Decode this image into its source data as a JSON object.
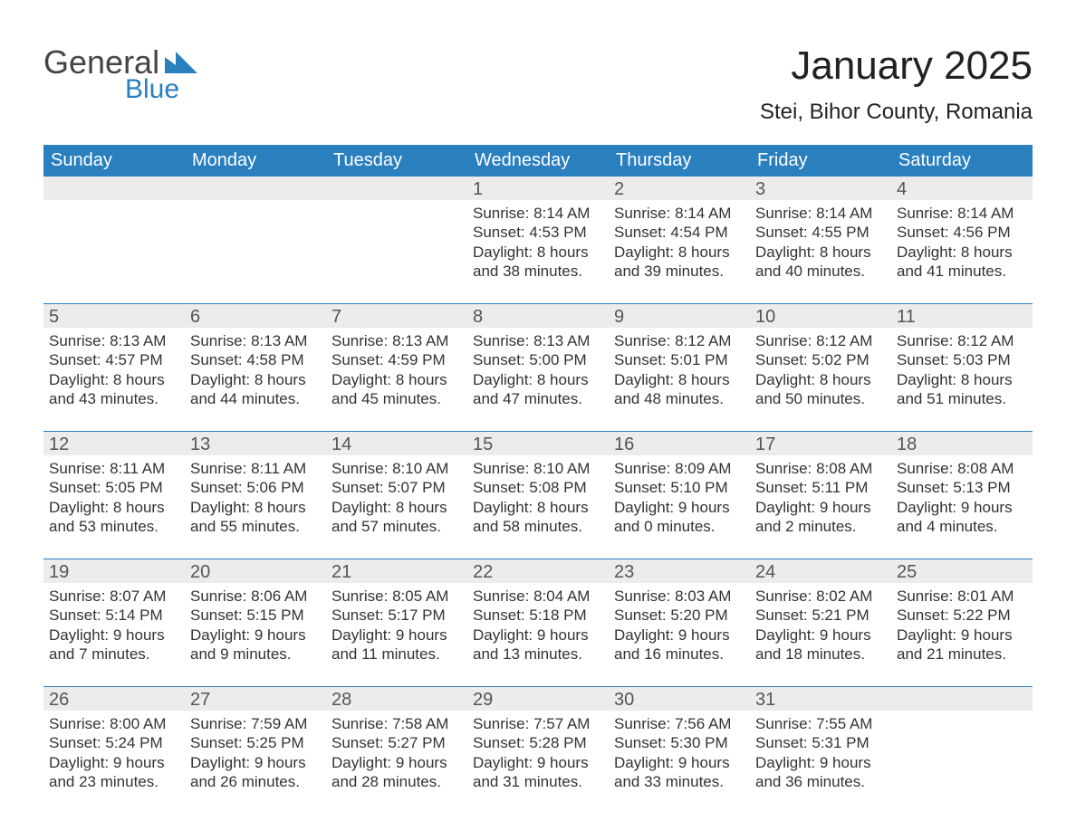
{
  "brand": {
    "general": "General",
    "blue": "Blue",
    "flag_color": "#2a7fbf"
  },
  "title": "January 2025",
  "location": "Stei, Bihor County, Romania",
  "colors": {
    "header_bg": "#2a7fbf",
    "header_text": "#ffffff",
    "daynum_bg": "#ececec",
    "daynum_text": "#555555",
    "body_text": "#333333",
    "rule": "#2a7fbf",
    "page_bg": "#ffffff"
  },
  "typography": {
    "title_fontsize_pt": 33,
    "location_fontsize_pt": 18,
    "dayheader_fontsize_pt": 15,
    "daynum_fontsize_pt": 15,
    "body_fontsize_pt": 13
  },
  "day_names": [
    "Sunday",
    "Monday",
    "Tuesday",
    "Wednesday",
    "Thursday",
    "Friday",
    "Saturday"
  ],
  "weeks": [
    [
      {
        "num": "",
        "sunrise": "",
        "sunset": "",
        "daylight": ""
      },
      {
        "num": "",
        "sunrise": "",
        "sunset": "",
        "daylight": ""
      },
      {
        "num": "",
        "sunrise": "",
        "sunset": "",
        "daylight": ""
      },
      {
        "num": "1",
        "sunrise": "Sunrise: 8:14 AM",
        "sunset": "Sunset: 4:53 PM",
        "daylight": "Daylight: 8 hours and 38 minutes."
      },
      {
        "num": "2",
        "sunrise": "Sunrise: 8:14 AM",
        "sunset": "Sunset: 4:54 PM",
        "daylight": "Daylight: 8 hours and 39 minutes."
      },
      {
        "num": "3",
        "sunrise": "Sunrise: 8:14 AM",
        "sunset": "Sunset: 4:55 PM",
        "daylight": "Daylight: 8 hours and 40 minutes."
      },
      {
        "num": "4",
        "sunrise": "Sunrise: 8:14 AM",
        "sunset": "Sunset: 4:56 PM",
        "daylight": "Daylight: 8 hours and 41 minutes."
      }
    ],
    [
      {
        "num": "5",
        "sunrise": "Sunrise: 8:13 AM",
        "sunset": "Sunset: 4:57 PM",
        "daylight": "Daylight: 8 hours and 43 minutes."
      },
      {
        "num": "6",
        "sunrise": "Sunrise: 8:13 AM",
        "sunset": "Sunset: 4:58 PM",
        "daylight": "Daylight: 8 hours and 44 minutes."
      },
      {
        "num": "7",
        "sunrise": "Sunrise: 8:13 AM",
        "sunset": "Sunset: 4:59 PM",
        "daylight": "Daylight: 8 hours and 45 minutes."
      },
      {
        "num": "8",
        "sunrise": "Sunrise: 8:13 AM",
        "sunset": "Sunset: 5:00 PM",
        "daylight": "Daylight: 8 hours and 47 minutes."
      },
      {
        "num": "9",
        "sunrise": "Sunrise: 8:12 AM",
        "sunset": "Sunset: 5:01 PM",
        "daylight": "Daylight: 8 hours and 48 minutes."
      },
      {
        "num": "10",
        "sunrise": "Sunrise: 8:12 AM",
        "sunset": "Sunset: 5:02 PM",
        "daylight": "Daylight: 8 hours and 50 minutes."
      },
      {
        "num": "11",
        "sunrise": "Sunrise: 8:12 AM",
        "sunset": "Sunset: 5:03 PM",
        "daylight": "Daylight: 8 hours and 51 minutes."
      }
    ],
    [
      {
        "num": "12",
        "sunrise": "Sunrise: 8:11 AM",
        "sunset": "Sunset: 5:05 PM",
        "daylight": "Daylight: 8 hours and 53 minutes."
      },
      {
        "num": "13",
        "sunrise": "Sunrise: 8:11 AM",
        "sunset": "Sunset: 5:06 PM",
        "daylight": "Daylight: 8 hours and 55 minutes."
      },
      {
        "num": "14",
        "sunrise": "Sunrise: 8:10 AM",
        "sunset": "Sunset: 5:07 PM",
        "daylight": "Daylight: 8 hours and 57 minutes."
      },
      {
        "num": "15",
        "sunrise": "Sunrise: 8:10 AM",
        "sunset": "Sunset: 5:08 PM",
        "daylight": "Daylight: 8 hours and 58 minutes."
      },
      {
        "num": "16",
        "sunrise": "Sunrise: 8:09 AM",
        "sunset": "Sunset: 5:10 PM",
        "daylight": "Daylight: 9 hours and 0 minutes."
      },
      {
        "num": "17",
        "sunrise": "Sunrise: 8:08 AM",
        "sunset": "Sunset: 5:11 PM",
        "daylight": "Daylight: 9 hours and 2 minutes."
      },
      {
        "num": "18",
        "sunrise": "Sunrise: 8:08 AM",
        "sunset": "Sunset: 5:13 PM",
        "daylight": "Daylight: 9 hours and 4 minutes."
      }
    ],
    [
      {
        "num": "19",
        "sunrise": "Sunrise: 8:07 AM",
        "sunset": "Sunset: 5:14 PM",
        "daylight": "Daylight: 9 hours and 7 minutes."
      },
      {
        "num": "20",
        "sunrise": "Sunrise: 8:06 AM",
        "sunset": "Sunset: 5:15 PM",
        "daylight": "Daylight: 9 hours and 9 minutes."
      },
      {
        "num": "21",
        "sunrise": "Sunrise: 8:05 AM",
        "sunset": "Sunset: 5:17 PM",
        "daylight": "Daylight: 9 hours and 11 minutes."
      },
      {
        "num": "22",
        "sunrise": "Sunrise: 8:04 AM",
        "sunset": "Sunset: 5:18 PM",
        "daylight": "Daylight: 9 hours and 13 minutes."
      },
      {
        "num": "23",
        "sunrise": "Sunrise: 8:03 AM",
        "sunset": "Sunset: 5:20 PM",
        "daylight": "Daylight: 9 hours and 16 minutes."
      },
      {
        "num": "24",
        "sunrise": "Sunrise: 8:02 AM",
        "sunset": "Sunset: 5:21 PM",
        "daylight": "Daylight: 9 hours and 18 minutes."
      },
      {
        "num": "25",
        "sunrise": "Sunrise: 8:01 AM",
        "sunset": "Sunset: 5:22 PM",
        "daylight": "Daylight: 9 hours and 21 minutes."
      }
    ],
    [
      {
        "num": "26",
        "sunrise": "Sunrise: 8:00 AM",
        "sunset": "Sunset: 5:24 PM",
        "daylight": "Daylight: 9 hours and 23 minutes."
      },
      {
        "num": "27",
        "sunrise": "Sunrise: 7:59 AM",
        "sunset": "Sunset: 5:25 PM",
        "daylight": "Daylight: 9 hours and 26 minutes."
      },
      {
        "num": "28",
        "sunrise": "Sunrise: 7:58 AM",
        "sunset": "Sunset: 5:27 PM",
        "daylight": "Daylight: 9 hours and 28 minutes."
      },
      {
        "num": "29",
        "sunrise": "Sunrise: 7:57 AM",
        "sunset": "Sunset: 5:28 PM",
        "daylight": "Daylight: 9 hours and 31 minutes."
      },
      {
        "num": "30",
        "sunrise": "Sunrise: 7:56 AM",
        "sunset": "Sunset: 5:30 PM",
        "daylight": "Daylight: 9 hours and 33 minutes."
      },
      {
        "num": "31",
        "sunrise": "Sunrise: 7:55 AM",
        "sunset": "Sunset: 5:31 PM",
        "daylight": "Daylight: 9 hours and 36 minutes."
      },
      {
        "num": "",
        "sunrise": "",
        "sunset": "",
        "daylight": ""
      }
    ]
  ]
}
